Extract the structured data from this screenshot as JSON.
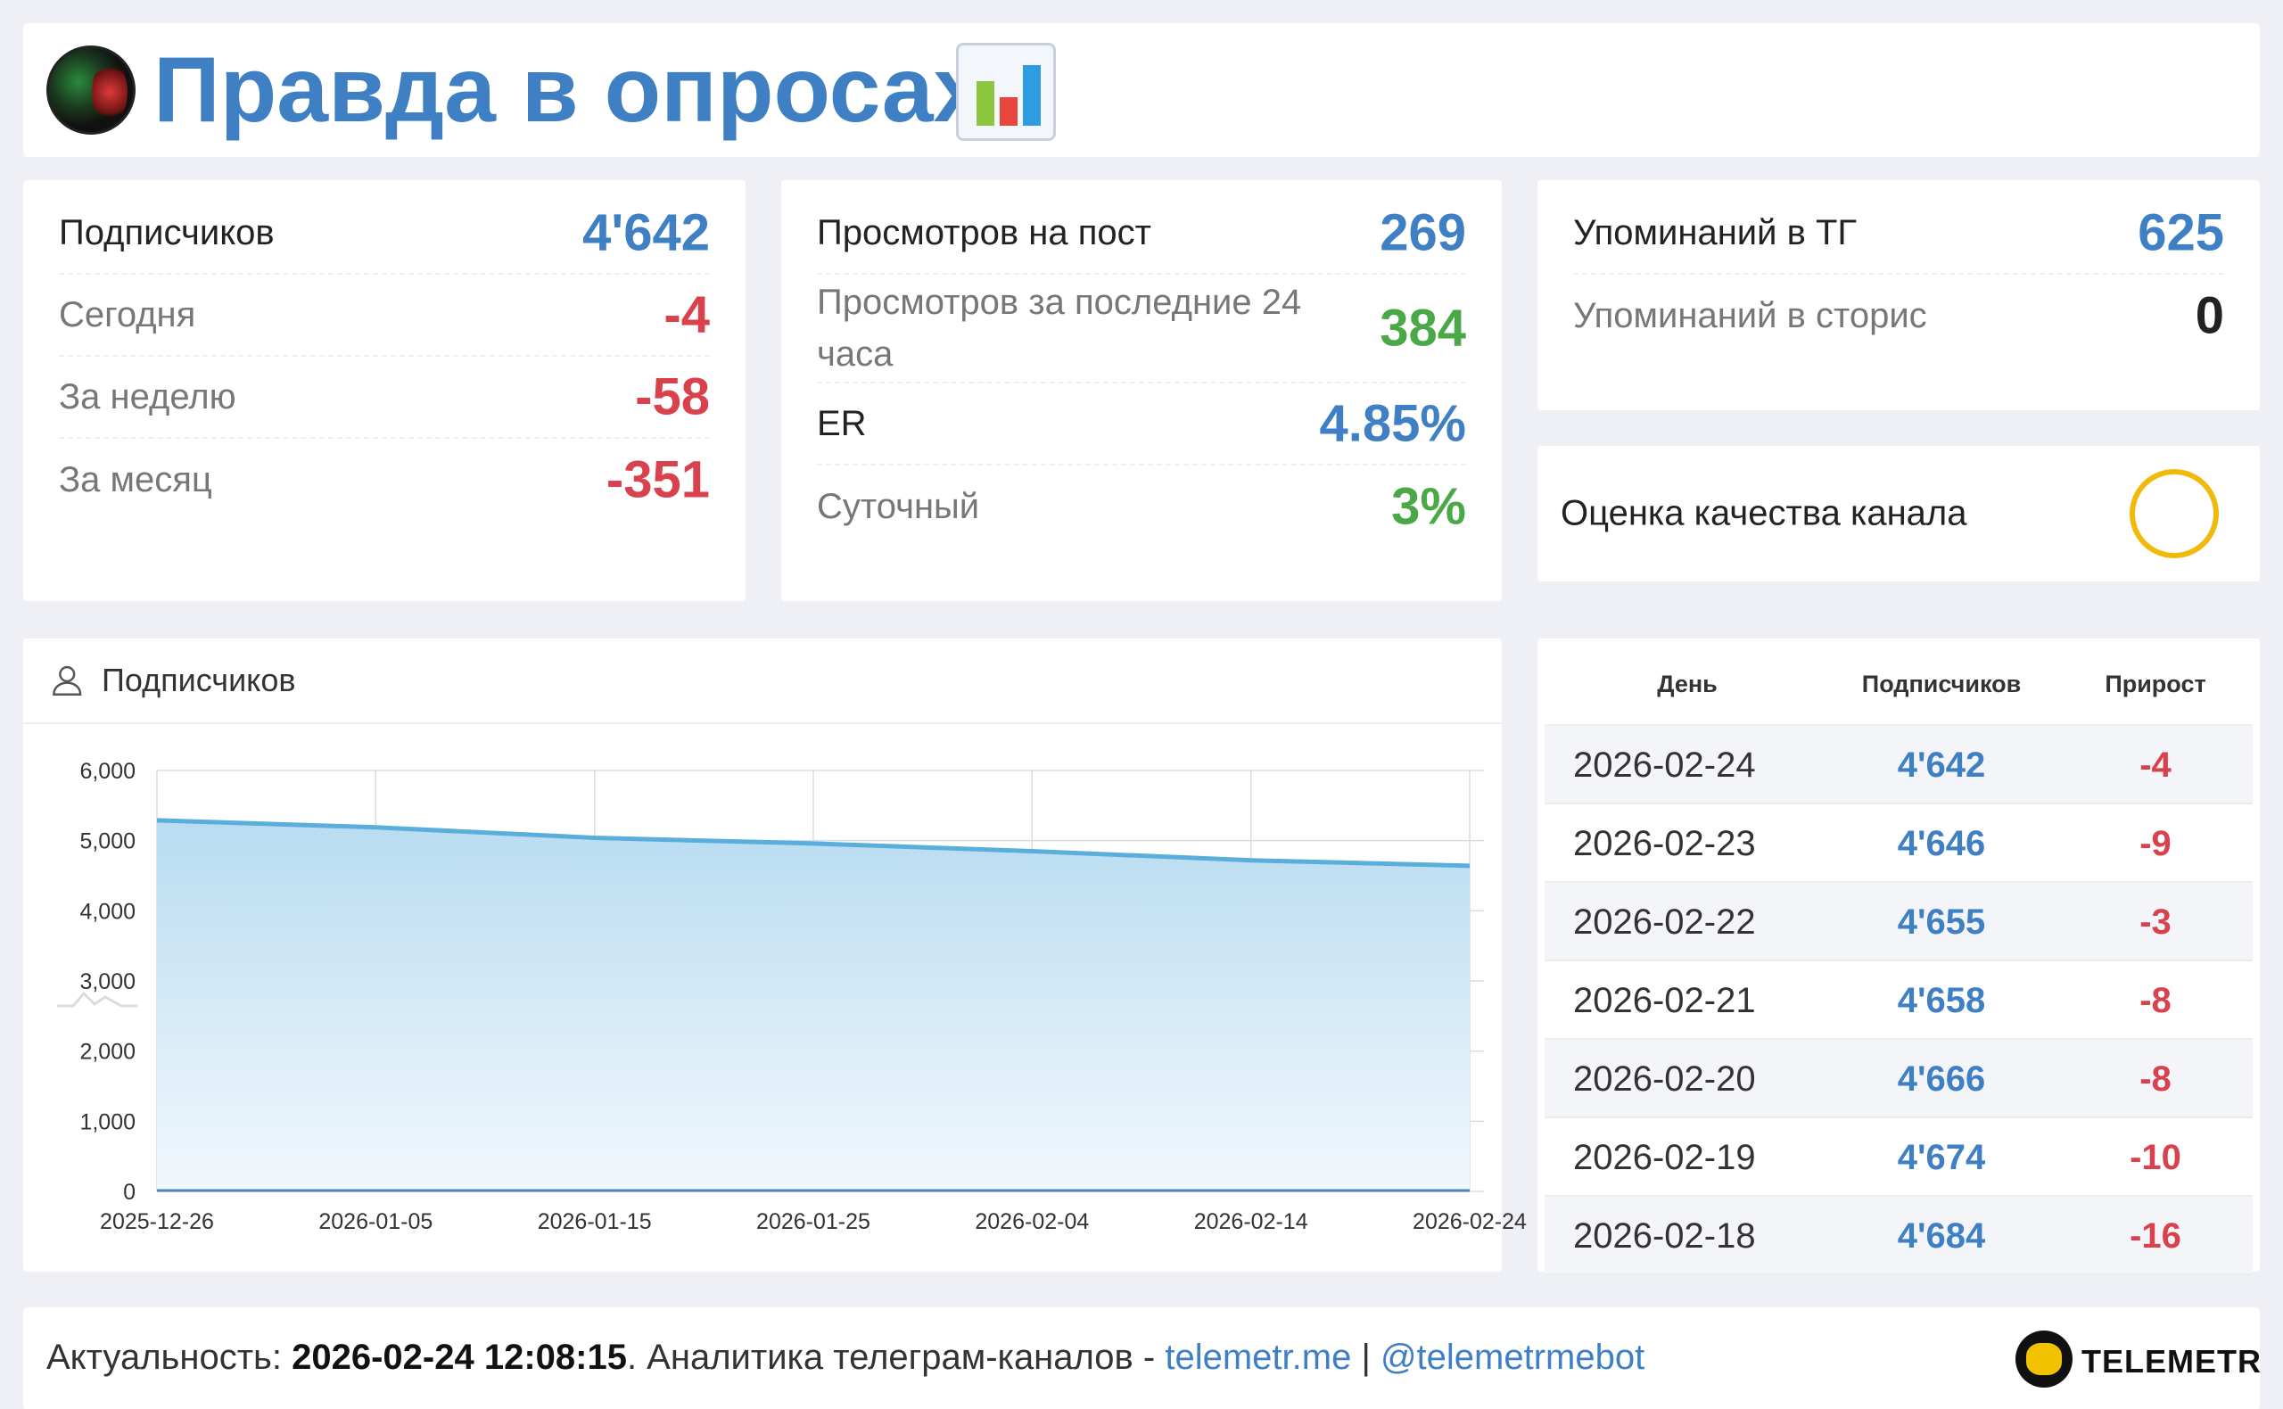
{
  "header": {
    "title": "Правда в опросах",
    "emoji": "chart-emoji-icon"
  },
  "subscribers": {
    "label": "Подписчиков",
    "value": "4'642",
    "rows": [
      {
        "label": "Сегодня",
        "value": "-4"
      },
      {
        "label": "За неделю",
        "value": "-58"
      },
      {
        "label": "За месяц",
        "value": "-351"
      }
    ]
  },
  "views": {
    "label": "Просмотров на пост",
    "value": "269",
    "last24_label": "Просмотров за последние 24 часа",
    "last24_value": "384",
    "er_label": "ER",
    "er_value": "4.85%",
    "daily_label": "Суточный",
    "daily_value": "3%"
  },
  "mentions": {
    "tg_label": "Упоминаний в ТГ",
    "tg_value": "625",
    "stories_label": "Упоминаний в сторис",
    "stories_value": "0"
  },
  "quality": {
    "label": "Оценка качества канала"
  },
  "chart_card": {
    "title": "Подписчиков"
  },
  "chart_data": {
    "type": "area",
    "title": "Подписчиков",
    "xlabel": "",
    "ylabel": "",
    "x_start": "2025-12-26",
    "x_end": "2026-02-24",
    "xticks": [
      "2025-12-26",
      "2026-01-05",
      "2026-01-15",
      "2026-01-25",
      "2026-02-04",
      "2026-02-14",
      "2026-02-24"
    ],
    "yticks": [
      "0",
      "1,000",
      "2,000",
      "3,000",
      "4,000",
      "5,000",
      "6,000"
    ],
    "ylim": [
      0,
      6000
    ],
    "grid": true,
    "series": [
      {
        "values": [
          {
            "x": "2025-12-26",
            "y": 5290
          },
          {
            "x": "2026-01-05",
            "y": 5190
          },
          {
            "x": "2026-01-15",
            "y": 5040
          },
          {
            "x": "2026-01-25",
            "y": 4960
          },
          {
            "x": "2026-02-04",
            "y": 4850
          },
          {
            "x": "2026-02-14",
            "y": 4720
          },
          {
            "x": "2026-02-24",
            "y": 4642
          }
        ]
      }
    ],
    "colors": {
      "line": "#5aaedc",
      "fill_top": "#b8dcf1",
      "fill_bottom": "#f2f8fd"
    }
  },
  "table": {
    "headers": {
      "day": "День",
      "subs": "Подписчиков",
      "growth": "Прирост"
    },
    "rows": [
      {
        "day": "2026-02-24",
        "subs": "4'642",
        "growth": "-4"
      },
      {
        "day": "2026-02-23",
        "subs": "4'646",
        "growth": "-9"
      },
      {
        "day": "2026-02-22",
        "subs": "4'655",
        "growth": "-3"
      },
      {
        "day": "2026-02-21",
        "subs": "4'658",
        "growth": "-8"
      },
      {
        "day": "2026-02-20",
        "subs": "4'666",
        "growth": "-8"
      },
      {
        "day": "2026-02-19",
        "subs": "4'674",
        "growth": "-10"
      },
      {
        "day": "2026-02-18",
        "subs": "4'684",
        "growth": "-16"
      }
    ]
  },
  "footer": {
    "prefix": "Актуальность: ",
    "timestamp": "2026-02-24 12:08:15",
    "middle": ". Аналитика телеграм-каналов - ",
    "site_link": "telemetr.me",
    "separator": " | ",
    "bot_link": "@telemetrmebot",
    "logo_text": "TELEMETR"
  },
  "colors": {
    "accent": "#3f7fc4",
    "negative": "#d9424d",
    "positive": "#4aa847",
    "quality_ring": "#f0b90b"
  }
}
